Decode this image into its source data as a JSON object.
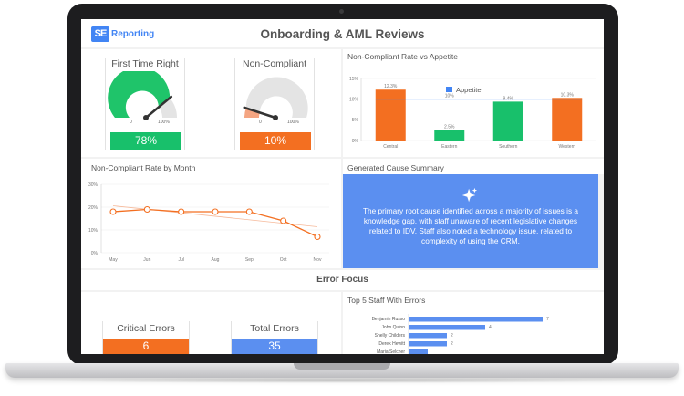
{
  "header": {
    "logo_mark": "SE",
    "logo_word": "Reporting",
    "title": "Onboarding & AML Reviews"
  },
  "gauges": [
    {
      "title": "First Time Right",
      "value_label": "78%",
      "value": 0.78,
      "min_label": "0",
      "max_label": "100%",
      "color": "#1fc46a",
      "bar_color": "#18c06b"
    },
    {
      "title": "Non-Compliant",
      "value_label": "10%",
      "value": 0.1,
      "min_label": "0",
      "max_label": "100%",
      "color": "#f4a582",
      "bar_color": "#f36f21"
    }
  ],
  "appetite_chart": {
    "title": "Non-Compliant Rate vs Appetite",
    "legend": "Appetite",
    "appetite_value": 10,
    "appetite_label": "10%",
    "y_ticks": [
      "15%",
      "10%",
      "5%",
      "0%"
    ],
    "categories": [
      "Central",
      "Eastern",
      "Southern",
      "Western"
    ],
    "values": [
      12.3,
      2.5,
      9.4,
      10.3
    ],
    "value_labels": [
      "12.3%",
      "2.5%",
      "9.4%",
      "10.3%"
    ],
    "colors": [
      "#f36f21",
      "#18c06b",
      "#18c06b",
      "#f36f21"
    ]
  },
  "monthly_chart": {
    "title": "Non-Compliant Rate by Month",
    "y_ticks": [
      "30%",
      "20%",
      "10%",
      "0%"
    ],
    "months": [
      "May",
      "Jun",
      "Jul",
      "Aug",
      "Sep",
      "Oct",
      "Nov"
    ],
    "values": [
      18,
      19,
      18,
      18,
      18,
      14,
      7
    ]
  },
  "summary": {
    "title": "Generated Cause Summary",
    "text": "The primary root cause identified across a majority of issues is a knowledge gap, with staff unaware of recent legislative changes related to IDV. Staff also noted a technology issue, related to complexity of using the CRM."
  },
  "error_focus": {
    "title": "Error Focus",
    "critical_label": "Critical Errors",
    "critical_value": "6",
    "total_label": "Total Errors",
    "total_value": "35"
  },
  "staff_chart": {
    "title": "Top 5 Staff With Errors",
    "names": [
      "Benjamin Russo",
      "John Quinn",
      "Shelly Childers",
      "Derek Hewitt",
      "Maria Selcher"
    ],
    "values": [
      7,
      4,
      2,
      2,
      1
    ],
    "value_labels": [
      "7",
      "4",
      "2",
      "2",
      ""
    ]
  },
  "colors": {
    "accent": "#4285f4",
    "red": "#f36f21",
    "green": "#18c06b",
    "summary_bg": "#5b8ff0"
  }
}
